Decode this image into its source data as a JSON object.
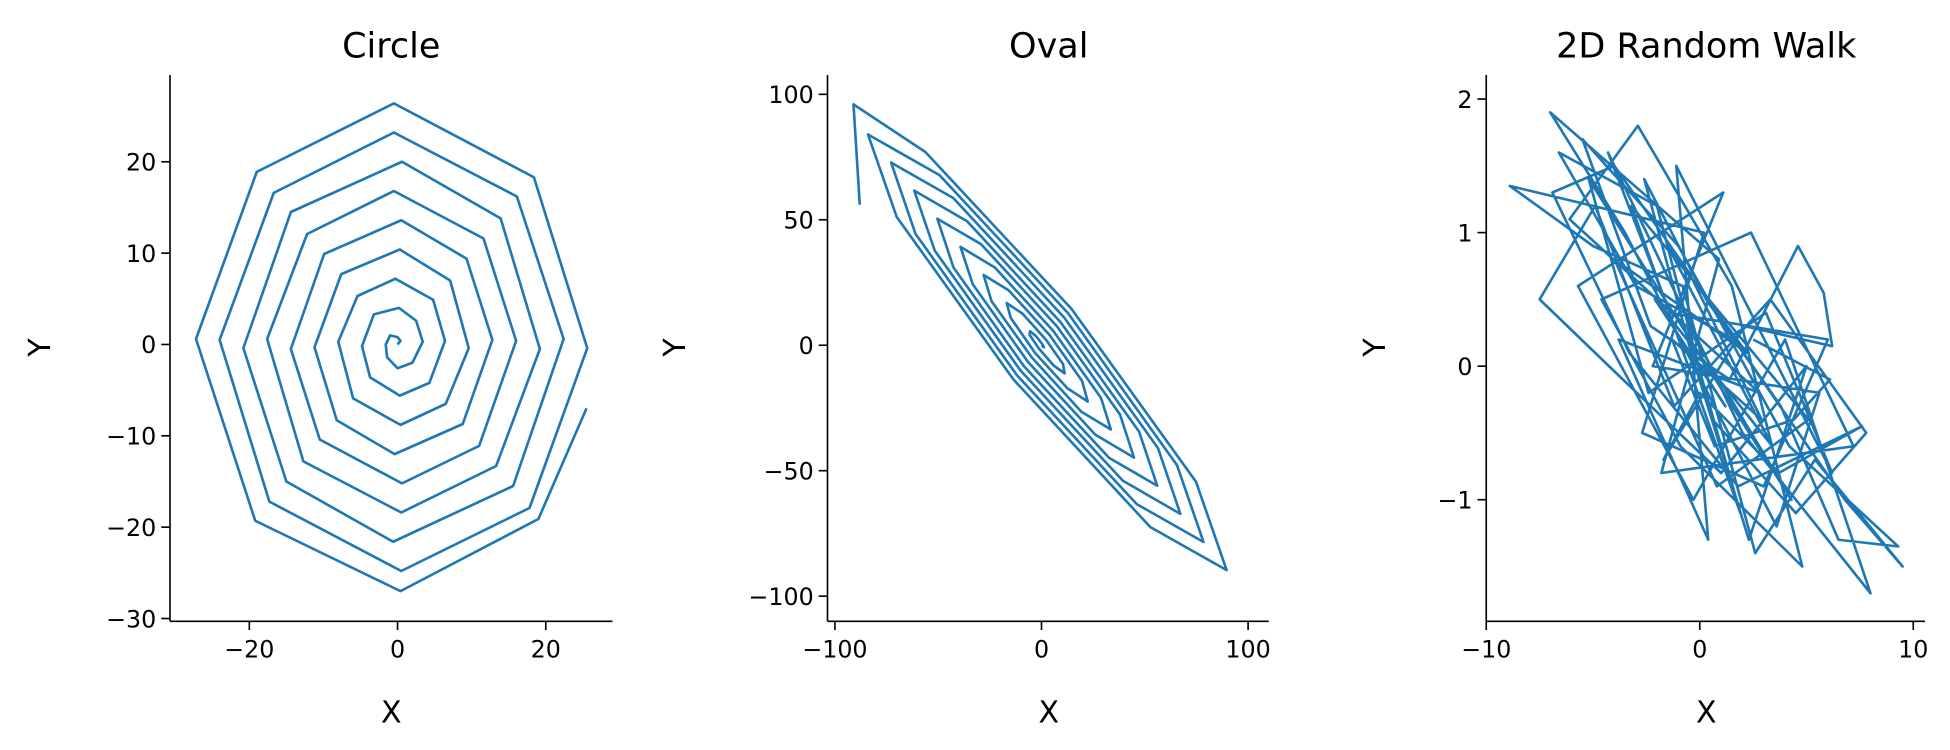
{
  "colors": {
    "series": "#1f77b4"
  },
  "chart_data": [
    {
      "type": "line",
      "title": "Circle",
      "xlabel": "X",
      "ylabel": "Y",
      "xlim": [
        -30.7,
        29
      ],
      "ylim": [
        -30.3,
        29.5
      ],
      "grid": false,
      "xticks": [
        -20,
        0,
        20
      ],
      "xtick_labels": [
        "−20",
        "0",
        "20"
      ],
      "yticks": [
        -30,
        -20,
        -10,
        0,
        10,
        20
      ],
      "ytick_labels": [
        "−30",
        "−20",
        "−10",
        "0",
        "10",
        "20"
      ],
      "points": [
        [
          0,
          0
        ],
        [
          0.4,
          0.4
        ],
        [
          0,
          0.8
        ],
        [
          -1,
          1
        ],
        [
          -1.6,
          0
        ],
        [
          -1.4,
          -1.4
        ],
        [
          0,
          -2.6
        ],
        [
          2,
          -2
        ],
        [
          3.4,
          0.3
        ],
        [
          2.5,
          2.6
        ],
        [
          0.2,
          4
        ],
        [
          -3.2,
          3.3
        ],
        [
          -4.8,
          -0.2
        ],
        [
          -3.7,
          -3.6
        ],
        [
          0.3,
          -5.6
        ],
        [
          4.3,
          -4.2
        ],
        [
          6.4,
          0.4
        ],
        [
          4.8,
          4.9
        ],
        [
          -0.3,
          7.2
        ],
        [
          -5.4,
          5.3
        ],
        [
          -8,
          0.3
        ],
        [
          -6,
          -5.9
        ],
        [
          0.4,
          -8.8
        ],
        [
          6.5,
          -6.5
        ],
        [
          9.6,
          -0.4
        ],
        [
          7.1,
          7.0
        ],
        [
          0.3,
          10.4
        ],
        [
          -7.6,
          7.7
        ],
        [
          -11.2,
          -0.3
        ],
        [
          -8.2,
          -8.3
        ],
        [
          -0.4,
          -12
        ],
        [
          8.8,
          -8.7
        ],
        [
          12.8,
          0.5
        ],
        [
          9.3,
          9.4
        ],
        [
          0.5,
          13.6
        ],
        [
          -9.9,
          9.9
        ],
        [
          -14.4,
          -0.5
        ],
        [
          -10.5,
          -10.4
        ],
        [
          0.6,
          -15.2
        ],
        [
          11,
          -11.1
        ],
        [
          16,
          0.4
        ],
        [
          11.6,
          11.6
        ],
        [
          -0.5,
          16.8
        ],
        [
          -12.2,
          12.1
        ],
        [
          -17.6,
          0.6
        ],
        [
          -12.7,
          -12.8
        ],
        [
          0.5,
          -18.4
        ],
        [
          13.3,
          -13.3
        ],
        [
          19.2,
          -0.5
        ],
        [
          13.9,
          13.8
        ],
        [
          0.6,
          20
        ],
        [
          -14.4,
          14.5
        ],
        [
          -20.8,
          -0.4
        ],
        [
          -15,
          -15
        ],
        [
          -0.6,
          -21.6
        ],
        [
          15.6,
          -15.5
        ],
        [
          22.4,
          0.6
        ],
        [
          16.1,
          16.2
        ],
        [
          -0.5,
          23.2
        ],
        [
          -16.7,
          16.6
        ],
        [
          -24,
          0.5
        ],
        [
          -17.3,
          -17.2
        ],
        [
          0.5,
          -24.8
        ],
        [
          17.8,
          -17.9
        ],
        [
          25.6,
          -0.4
        ],
        [
          18.4,
          18.3
        ],
        [
          -0.5,
          26.4
        ],
        [
          -19,
          18.9
        ],
        [
          -27.2,
          0.6
        ],
        [
          -19.2,
          -19.3
        ],
        [
          0.4,
          -27
        ],
        [
          19,
          -19.1
        ],
        [
          25.5,
          -7
        ]
      ]
    },
    {
      "type": "line",
      "title": "Oval",
      "xlabel": "X",
      "ylabel": "Y",
      "xlim": [
        -103.6,
        110
      ],
      "ylim": [
        -110,
        107.7
      ],
      "grid": false,
      "xticks": [
        -100,
        0,
        100
      ],
      "xtick_labels": [
        "−100",
        "0",
        "100"
      ],
      "yticks": [
        -100,
        -50,
        0,
        50,
        100
      ],
      "ytick_labels": [
        "−100",
        "−50",
        "0",
        "50",
        "100"
      ],
      "points": [
        [
          0,
          0
        ],
        [
          1.2,
          -0.8
        ],
        [
          0.4,
          0.4
        ],
        [
          -2.5,
          3.5
        ],
        [
          -5.6,
          5.6
        ],
        [
          -5.8,
          4.2
        ],
        [
          -1.3,
          -1.3
        ],
        [
          5.9,
          -8.1
        ],
        [
          11.2,
          -11.2
        ],
        [
          10.4,
          -7.5
        ],
        [
          2.2,
          2.2
        ],
        [
          -9.2,
          12.6
        ],
        [
          -16.8,
          16.8
        ],
        [
          -14.9,
          10.9
        ],
        [
          -3.1,
          -3.1
        ],
        [
          12.6,
          -17.2
        ],
        [
          22.4,
          -22.4
        ],
        [
          19.6,
          -14.2
        ],
        [
          4,
          4
        ],
        [
          -15.9,
          21.9
        ],
        [
          -28,
          28
        ],
        [
          -24.2,
          17.6
        ],
        [
          -4.8,
          -4.8
        ],
        [
          19.3,
          -26.5
        ],
        [
          33.6,
          -33.6
        ],
        [
          28.8,
          -21
        ],
        [
          5.7,
          5.7
        ],
        [
          -22.6,
          31
        ],
        [
          -39.2,
          39.2
        ],
        [
          -33.3,
          24.3
        ],
        [
          -6.6,
          -6.6
        ],
        [
          26,
          -35.6
        ],
        [
          44.8,
          -44.8
        ],
        [
          38,
          -27.6
        ],
        [
          7.5,
          7.5
        ],
        [
          -29.3,
          40.3
        ],
        [
          -50.4,
          50.4
        ],
        [
          -42.6,
          31
        ],
        [
          -8.4,
          -8.4
        ],
        [
          32.7,
          -44.9
        ],
        [
          56,
          -56
        ],
        [
          47.2,
          -34.4
        ],
        [
          9.2,
          9.2
        ],
        [
          -36,
          49.4
        ],
        [
          -61.6,
          61.6
        ],
        [
          -51.7,
          37.7
        ],
        [
          -10.1,
          -10.1
        ],
        [
          39.4,
          -54
        ],
        [
          67.2,
          -67.2
        ],
        [
          56.4,
          -41
        ],
        [
          11,
          11
        ],
        [
          -42.7,
          58.7
        ],
        [
          -72.8,
          72.8
        ],
        [
          -61,
          44.4
        ],
        [
          -11.9,
          -11.9
        ],
        [
          46.1,
          -63.3
        ],
        [
          78.4,
          -78.4
        ],
        [
          65.6,
          -47.8
        ],
        [
          12.8,
          12.8
        ],
        [
          -49.4,
          67.8
        ],
        [
          -84,
          84
        ],
        [
          -70.1,
          51.1
        ],
        [
          -13.6,
          -13.6
        ],
        [
          52.7,
          -72.5
        ],
        [
          89.6,
          -89.6
        ],
        [
          74.8,
          -54.4
        ],
        [
          14.5,
          14.5
        ],
        [
          -56.2,
          77
        ],
        [
          -91,
          96
        ],
        [
          -88,
          56
        ]
      ]
    },
    {
      "type": "line",
      "title": "2D Random Walk",
      "xlabel": "X",
      "ylabel": "Y",
      "xlim": [
        -10,
        10.55
      ],
      "ylim": [
        -1.91,
        2.18
      ],
      "grid": false,
      "xticks": [
        -10,
        0,
        10
      ],
      "xtick_labels": [
        "−10",
        "0",
        "10"
      ],
      "yticks": [
        -1,
        0,
        1,
        2
      ],
      "ytick_labels": [
        "−1",
        "0",
        "1",
        "2"
      ],
      "points": [
        [
          0,
          0
        ],
        [
          1.2,
          -0.3
        ],
        [
          -2.1,
          0.5
        ],
        [
          3.4,
          -0.6
        ],
        [
          -1.5,
          0.9
        ],
        [
          2.2,
          0.1
        ],
        [
          -4,
          0.8
        ],
        [
          0.8,
          -0.9
        ],
        [
          5.1,
          -0.4
        ],
        [
          -3.2,
          1.2
        ],
        [
          1.9,
          -1.1
        ],
        [
          -0.6,
          0.3
        ],
        [
          4.3,
          -1.0
        ],
        [
          -5.2,
          1.4
        ],
        [
          -2.4,
          -0.2
        ],
        [
          3.1,
          0.4
        ],
        [
          6.2,
          -0.8
        ],
        [
          -1.1,
          1.5
        ],
        [
          0.4,
          -1.3
        ],
        [
          -3.8,
          0.2
        ],
        [
          2.8,
          -0.2
        ],
        [
          -6.1,
          1.1
        ],
        [
          -2.9,
          1.8
        ],
        [
          1.5,
          0.6
        ],
        [
          4.8,
          -1.5
        ],
        [
          -0.9,
          -0.6
        ],
        [
          -4.6,
          0.5
        ],
        [
          2.4,
          1.0
        ],
        [
          7.2,
          -0.6
        ],
        [
          -1.8,
          -0.8
        ],
        [
          0.9,
          0.8
        ],
        [
          -7.0,
          1.9
        ],
        [
          -3.5,
          1.0
        ],
        [
          3.6,
          -1.2
        ],
        [
          5.6,
          -0.2
        ],
        [
          -2.2,
          0.0
        ],
        [
          1.1,
          1.3
        ],
        [
          -5.7,
          0.6
        ],
        [
          -0.3,
          -1.0
        ],
        [
          4.0,
          0.2
        ],
        [
          8.0,
          -1.7
        ],
        [
          2.0,
          -0.5
        ],
        [
          -4.3,
          1.6
        ],
        [
          -1.4,
          0.4
        ],
        [
          6.0,
          0.2
        ],
        [
          3.0,
          -0.9
        ],
        [
          -2.7,
          -0.5
        ],
        [
          0.2,
          1.0
        ],
        [
          -8.9,
          1.35
        ],
        [
          -5.0,
          0.9
        ],
        [
          -0.8,
          0.6
        ],
        [
          2.6,
          -1.4
        ],
        [
          5.4,
          -0.7
        ],
        [
          9.5,
          -1.5
        ],
        [
          6.8,
          -1.0
        ],
        [
          1.6,
          0.2
        ],
        [
          -3.0,
          0.6
        ],
        [
          -6.6,
          1.6
        ],
        [
          -2.0,
          1.2
        ],
        [
          0.6,
          -0.4
        ],
        [
          4.5,
          -1.1
        ],
        [
          7.8,
          -0.5
        ],
        [
          3.3,
          0.5
        ],
        [
          -1.2,
          -0.3
        ],
        [
          -4.9,
          1.2
        ],
        [
          -7.5,
          0.5
        ],
        [
          -3.6,
          -0.1
        ],
        [
          1.0,
          -0.8
        ],
        [
          5.0,
          0.0
        ],
        [
          2.3,
          -1.3
        ],
        [
          -0.4,
          0.1
        ],
        [
          -2.6,
          1.4
        ],
        [
          0.3,
          0.5
        ],
        [
          3.8,
          -0.3
        ],
        [
          6.5,
          -1.3
        ],
        [
          9.3,
          -1.35
        ],
        [
          4.2,
          -0.6
        ],
        [
          -1.0,
          0.9
        ],
        [
          -5.5,
          1.7
        ],
        [
          -2.3,
          0.3
        ],
        [
          1.4,
          -0.1
        ],
        [
          4.6,
          0.9
        ],
        [
          5.8,
          0.55
        ],
        [
          6.2,
          0.15
        ],
        [
          2.1,
          0.3
        ],
        [
          -1.7,
          -0.7
        ],
        [
          0.0,
          -0.2
        ],
        [
          3.7,
          -0.8
        ],
        [
          7.6,
          -0.45
        ],
        [
          1.8,
          -0.9
        ],
        [
          -3.3,
          0.1
        ],
        [
          -6.9,
          1.3
        ],
        [
          -4.0,
          1.5
        ],
        [
          -0.5,
          0.7
        ],
        [
          2.9,
          -0.4
        ],
        [
          -1.3,
          0.2
        ],
        [
          0.7,
          -0.6
        ],
        [
          4.4,
          -0.4
        ],
        [
          6.1,
          -0.1
        ],
        [
          2.5,
          0.2
        ]
      ]
    }
  ]
}
